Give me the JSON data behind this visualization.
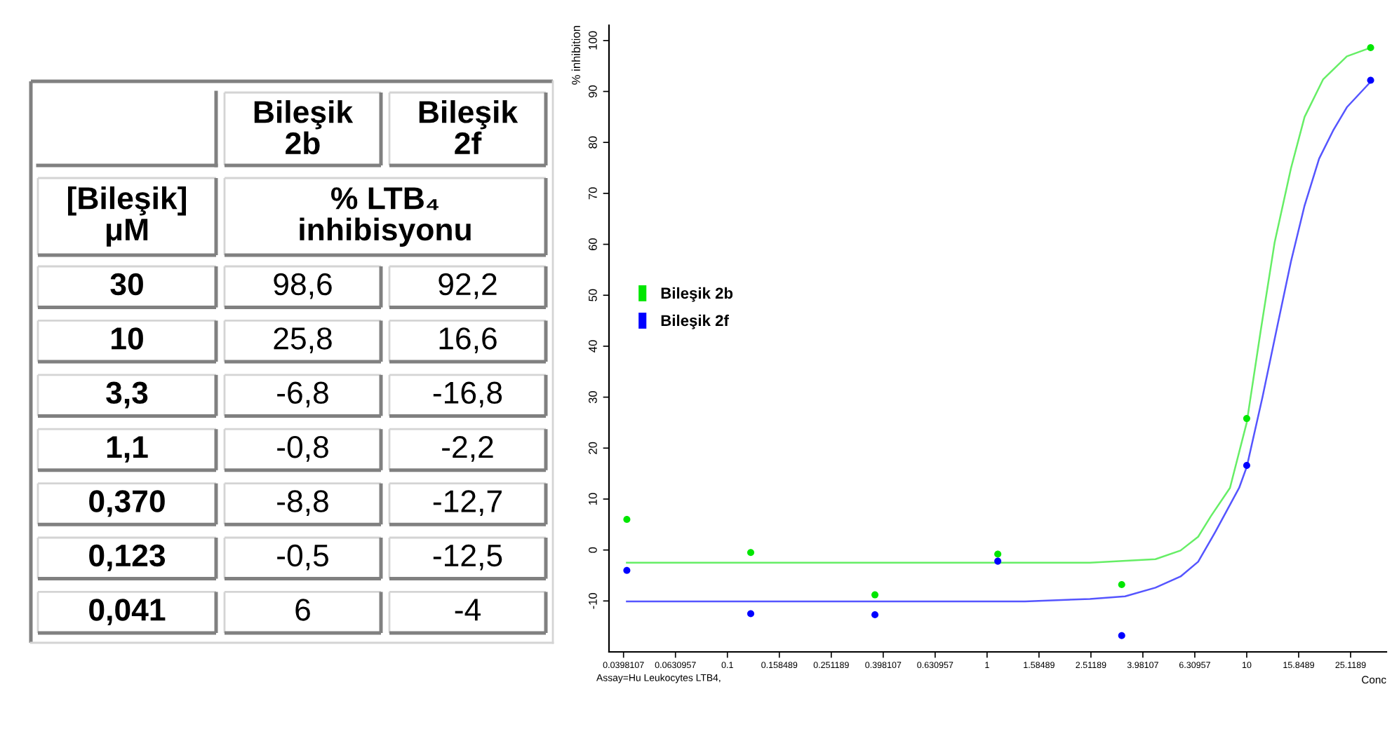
{
  "chart_data": [
    {
      "type": "other",
      "xlabel": "% LTB₄ inhibisyonu",
      "ylabel": "[Bileşik] μM",
      "categories": [
        "30",
        "10",
        "3,3",
        "1,1",
        "0,370",
        "0,123",
        "0,041"
      ],
      "series": [
        {
          "name": "Bileşik 2b",
          "values": [
            98.6,
            25.8,
            -6.8,
            -0.8,
            -8.8,
            -0.5,
            6
          ],
          "value_labels": [
            "98,6",
            "25,8",
            "-6,8",
            "-0,8",
            "-8,8",
            "-0,5",
            "6"
          ]
        },
        {
          "name": "Bileşik 2f",
          "values": [
            92.2,
            16.6,
            -16.8,
            -2.2,
            -12.7,
            -12.5,
            -4
          ],
          "value_labels": [
            "92,2",
            "16,6",
            "-16,8",
            "-2,2",
            "-12,7",
            "-12,5",
            "-4"
          ]
        }
      ]
    },
    {
      "type": "scatter",
      "xlabel": "Conc",
      "ylabel": "% inhibition",
      "annotations": [
        "Assay=Hu Leukocytes LTB4,"
      ],
      "log": "x",
      "xlim": [
        0.035,
        34.5
      ],
      "xticks": [
        0.0398107,
        0.0630957,
        0.1,
        0.158489,
        0.251189,
        0.398107,
        0.630957,
        1,
        1.58489,
        2.51189,
        3.98107,
        6.30957,
        10,
        15.8489,
        25.1189
      ],
      "ylim": [
        -20,
        103
      ],
      "yticks": [
        -10,
        0,
        10,
        20,
        30,
        40,
        50,
        60,
        70,
        80,
        90,
        100
      ],
      "legend": "center left",
      "marker": "circle",
      "series": [
        {
          "name": "Bileşik 2b",
          "color": "#00e600",
          "x": [
            0.041,
            0.123,
            0.37,
            1.1,
            3.3,
            10,
            30
          ],
          "values": [
            6,
            -0.5,
            -8.8,
            -0.8,
            -6.8,
            25.8,
            98.6
          ]
        },
        {
          "name": "Bileşik 2f",
          "color": "#0000ff",
          "x": [
            0.041,
            0.123,
            0.37,
            1.1,
            3.3,
            10,
            30
          ],
          "values": [
            -4,
            -12.5,
            -12.7,
            -2.2,
            -16.8,
            16.6,
            92.2
          ]
        },
        {
          "type": "line",
          "marker": "none",
          "color": "#66ee66",
          "x": [
            0.041,
            2.49,
            4.45,
            5.56,
            6.5,
            7.27,
            8.62,
            10,
            11.3,
            12.8,
            14.8,
            16.7,
            19.7,
            24.3,
            30
          ],
          "values": [
            -2.5,
            -2.5,
            -1.8,
            -0.1,
            2.6,
            6.6,
            12.2,
            25,
            42.8,
            60.3,
            74.9,
            85,
            92.4,
            96.9,
            98.6
          ]
        },
        {
          "type": "line",
          "marker": "none",
          "color": "#5555ff",
          "x": [
            0.041,
            1.4,
            2.49,
            3.4,
            4.45,
            5.56,
            6.5,
            7.58,
            9.35,
            10,
            11.5,
            13.1,
            14.8,
            16.7,
            19,
            21.5,
            24.3,
            30
          ],
          "values": [
            -10.1,
            -10.1,
            -9.6,
            -9.1,
            -7.4,
            -5.2,
            -2.3,
            3.6,
            12.2,
            16.3,
            30,
            43.8,
            56.6,
            67.6,
            76.8,
            82.3,
            86.9,
            91.9
          ]
        }
      ]
    }
  ]
}
